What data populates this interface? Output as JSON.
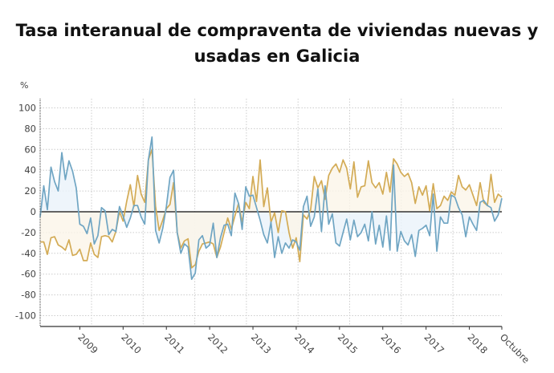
{
  "chart_data": {
    "type": "line",
    "title": "Tasa interanual de compraventa de viviendas nuevas y usadas en Galicia",
    "ylabel": "%",
    "ylim": [
      -100,
      100
    ],
    "yticks": [
      100,
      80,
      60,
      40,
      20,
      0,
      -20,
      -40,
      -60,
      -80,
      -100
    ],
    "xtick_labels": [
      {
        "label": "2009",
        "at": "2009-01"
      },
      {
        "label": "2010",
        "at": "2010-01"
      },
      {
        "label": "2011",
        "at": "2011-01"
      },
      {
        "label": "2012",
        "at": "2012-01"
      },
      {
        "label": "2013",
        "at": "2013-01"
      },
      {
        "label": "2014",
        "at": "2014-01"
      },
      {
        "label": "2015",
        "at": "2015-01"
      },
      {
        "label": "2016",
        "at": "2016-01"
      },
      {
        "label": "2017",
        "at": "2017-01"
      },
      {
        "label": "2018",
        "at": "2018-01"
      },
      {
        "label": "Octubre",
        "at": "2018-10"
      }
    ],
    "x": [
      "2008-02",
      "2008-03",
      "2008-04",
      "2008-05",
      "2008-06",
      "2008-07",
      "2008-08",
      "2008-09",
      "2008-10",
      "2008-11",
      "2008-12",
      "2009-01",
      "2009-02",
      "2009-03",
      "2009-04",
      "2009-05",
      "2009-06",
      "2009-07",
      "2009-08",
      "2009-09",
      "2009-10",
      "2009-11",
      "2009-12",
      "2010-01",
      "2010-02",
      "2010-03",
      "2010-04",
      "2010-05",
      "2010-06",
      "2010-07",
      "2010-08",
      "2010-09",
      "2010-10",
      "2010-11",
      "2010-12",
      "2011-01",
      "2011-02",
      "2011-03",
      "2011-04",
      "2011-05",
      "2011-06",
      "2011-07",
      "2011-08",
      "2011-09",
      "2011-10",
      "2011-11",
      "2011-12",
      "2012-01",
      "2012-02",
      "2012-03",
      "2012-04",
      "2012-05",
      "2012-06",
      "2012-07",
      "2012-08",
      "2012-09",
      "2012-10",
      "2012-11",
      "2012-12",
      "2013-01",
      "2013-02",
      "2013-03",
      "2013-04",
      "2013-05",
      "2013-06",
      "2013-07",
      "2013-08",
      "2013-09",
      "2013-10",
      "2013-11",
      "2013-12",
      "2014-01",
      "2014-02",
      "2014-03",
      "2014-04",
      "2014-05",
      "2014-06",
      "2014-07",
      "2014-08",
      "2014-09",
      "2014-10",
      "2014-11",
      "2014-12",
      "2015-01",
      "2015-02",
      "2015-03",
      "2015-04",
      "2015-05",
      "2015-06",
      "2015-07",
      "2015-08",
      "2015-09",
      "2015-10",
      "2015-11",
      "2015-12",
      "2016-01",
      "2016-02",
      "2016-03",
      "2016-04",
      "2016-05",
      "2016-06",
      "2016-07",
      "2016-08",
      "2016-09",
      "2016-10",
      "2016-11",
      "2016-12",
      "2017-01",
      "2017-02",
      "2017-03",
      "2017-04",
      "2017-05",
      "2017-06",
      "2017-07",
      "2017-08",
      "2017-09",
      "2017-10",
      "2017-11",
      "2017-12",
      "2018-01",
      "2018-02",
      "2018-03",
      "2018-04",
      "2018-05",
      "2018-06",
      "2018-07",
      "2018-08",
      "2018-09",
      "2018-10"
    ],
    "series": [
      {
        "color": "#6fa5c3",
        "fill": "#eaf3fa",
        "values": [
          -5,
          25,
          2,
          43,
          29,
          20,
          57,
          31,
          49,
          39,
          23,
          -12,
          -14,
          -21,
          -6,
          -31,
          -23,
          4,
          1,
          -22,
          -17,
          -19,
          5,
          -4,
          -15,
          -6,
          6,
          6,
          -5,
          -12,
          50,
          72,
          -18,
          -30,
          -16,
          5,
          33,
          40,
          -20,
          -40,
          -31,
          -34,
          -65,
          -59,
          -27,
          -23,
          -35,
          -32,
          -11,
          -44,
          -25,
          -13,
          -12,
          -23,
          18,
          8,
          -17,
          24,
          15,
          16,
          4,
          -8,
          -22,
          -30,
          -10,
          -44,
          -24,
          -40,
          -30,
          -35,
          -27,
          -29,
          -37,
          5,
          15,
          -14,
          -5,
          22,
          -19,
          25,
          -12,
          -2,
          -30,
          -33,
          -20,
          -7,
          -27,
          -8,
          -24,
          -20,
          -12,
          -28,
          0,
          -31,
          -13,
          -34,
          -4,
          -37,
          45,
          -38,
          -19,
          -28,
          -32,
          -22,
          -43,
          -18,
          -16,
          -13,
          -23,
          17,
          -38,
          -5,
          -11,
          -11,
          16,
          14,
          4,
          -3,
          -24,
          -5,
          -12,
          -18,
          9,
          11,
          6,
          4,
          -9,
          -3,
          13
        ]
      },
      {
        "color": "#d3ab55",
        "fill": "#fbf5e8",
        "values": [
          -29,
          -29,
          -41,
          -25,
          -24,
          -32,
          -34,
          -37,
          -27,
          -42,
          -41,
          -36,
          -47,
          -47,
          -30,
          -41,
          -44,
          -24,
          -23,
          -24,
          -29,
          -19,
          0,
          -9,
          10,
          26,
          5,
          35,
          17,
          9,
          50,
          60,
          5,
          -18,
          -8,
          3,
          7,
          28,
          -20,
          -35,
          -28,
          -26,
          -54,
          -51,
          -38,
          -31,
          -30,
          -29,
          -31,
          -44,
          -34,
          -20,
          -6,
          -17,
          -4,
          8,
          -10,
          9,
          3,
          34,
          10,
          50,
          5,
          23,
          -10,
          -1,
          -20,
          1,
          0,
          -20,
          -35,
          -25,
          -48,
          -3,
          -7,
          2,
          34,
          23,
          30,
          12,
          35,
          42,
          46,
          38,
          50,
          42,
          22,
          48,
          14,
          24,
          25,
          49,
          28,
          23,
          28,
          17,
          38,
          19,
          51,
          46,
          38,
          34,
          37,
          28,
          8,
          24,
          16,
          25,
          1,
          27,
          3,
          6,
          15,
          11,
          19,
          16,
          35,
          24,
          21,
          26,
          16,
          6,
          28,
          9,
          6,
          36,
          9,
          17,
          14
        ]
      }
    ],
    "grid": true,
    "legend": "none"
  }
}
